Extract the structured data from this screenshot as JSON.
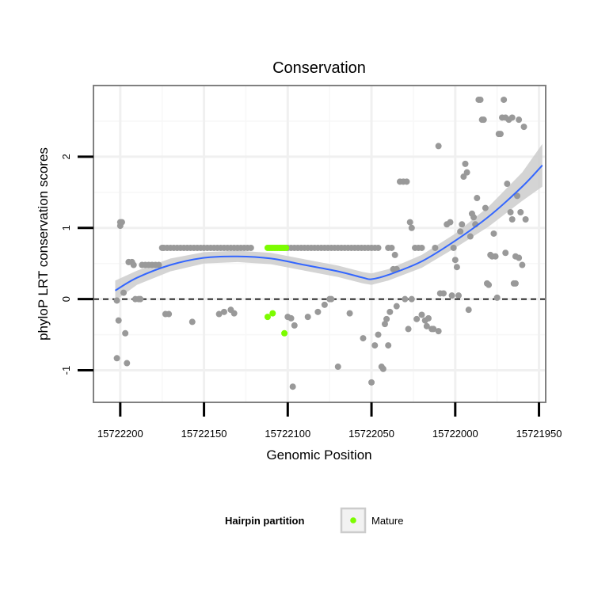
{
  "chart_data": {
    "type": "scatter",
    "title": "Conservation",
    "xlabel": "Genomic Position",
    "ylabel": "phyloP LRT conservation scores",
    "x_reversed": true,
    "xlim": [
      15722216,
      15721946
    ],
    "ylim": [
      -1.45,
      3.0
    ],
    "x_ticks": [
      15722200,
      15722150,
      15722100,
      15722050,
      15722000,
      15721950
    ],
    "x_tick_labels": [
      "15722200",
      "15722150",
      "15722100",
      "15722050",
      "15722000",
      "15721950"
    ],
    "y_ticks": [
      -1,
      0,
      1,
      2
    ],
    "y_tick_labels": [
      "-1",
      "0",
      "1",
      "2"
    ],
    "grid": true,
    "reference_line": {
      "y": 0,
      "style": "dashed",
      "color": "#000000"
    },
    "legend": {
      "title": "Hairpin partition",
      "position": "bottom",
      "entries": [
        {
          "label": "Mature",
          "color": "#7cfc00"
        }
      ]
    },
    "colors": {
      "other_points": "#999999",
      "mature_points": "#7cfc00",
      "smooth_line": "#3366ff",
      "confidence_band": "#cccccc",
      "panel_border": "#808080"
    },
    "series": [
      {
        "group": "other",
        "points": [
          [
            15722202,
            -0.02
          ],
          [
            15722202,
            -0.83
          ],
          [
            15722201,
            -0.3
          ],
          [
            15722200,
            1.08
          ],
          [
            15722200,
            1.03
          ],
          [
            15722199,
            1.08
          ],
          [
            15722198,
            0.09
          ],
          [
            15722197,
            -0.48
          ],
          [
            15722196,
            -0.9
          ],
          [
            15722195,
            0.52
          ],
          [
            15722193,
            0.52
          ],
          [
            15722192,
            0.48
          ],
          [
            15722191,
            0.0
          ],
          [
            15722189,
            0.0
          ],
          [
            15722188,
            0.0
          ],
          [
            15722187,
            0.48
          ],
          [
            15722185,
            0.48
          ],
          [
            15722183,
            0.48
          ],
          [
            15722181,
            0.48
          ],
          [
            15722179,
            0.48
          ],
          [
            15722177,
            0.48
          ],
          [
            15722175,
            0.72
          ],
          [
            15722173,
            -0.21
          ],
          [
            15722171,
            -0.21
          ],
          [
            15722174,
            0.72
          ],
          [
            15722172,
            0.72
          ],
          [
            15722170,
            0.72
          ],
          [
            15722168,
            0.72
          ],
          [
            15722166,
            0.72
          ],
          [
            15722164,
            0.72
          ],
          [
            15722162,
            0.72
          ],
          [
            15722160,
            0.72
          ],
          [
            15722158,
            0.72
          ],
          [
            15722157,
            -0.32
          ],
          [
            15722156,
            0.72
          ],
          [
            15722154,
            0.72
          ],
          [
            15722152,
            0.72
          ],
          [
            15722150,
            0.72
          ],
          [
            15722148,
            0.72
          ],
          [
            15722146,
            0.72
          ],
          [
            15722144,
            0.72
          ],
          [
            15722142,
            0.72
          ],
          [
            15722140,
            0.72
          ],
          [
            15722138,
            0.72
          ],
          [
            15722136,
            0.72
          ],
          [
            15722134,
            0.72
          ],
          [
            15722132,
            0.72
          ],
          [
            15722130,
            0.72
          ],
          [
            15722128,
            0.72
          ],
          [
            15722126,
            0.72
          ],
          [
            15722124,
            0.72
          ],
          [
            15722122,
            0.72
          ],
          [
            15722141,
            -0.21
          ],
          [
            15722138,
            -0.18
          ],
          [
            15722134,
            -0.15
          ],
          [
            15722132,
            -0.2
          ],
          [
            15722104,
            0.72
          ],
          [
            15722102,
            0.72
          ],
          [
            15722100,
            0.72
          ],
          [
            15722098,
            0.72
          ],
          [
            15722096,
            0.72
          ],
          [
            15722094,
            0.72
          ],
          [
            15722092,
            0.72
          ],
          [
            15722090,
            0.72
          ],
          [
            15722088,
            0.72
          ],
          [
            15722086,
            0.72
          ],
          [
            15722084,
            0.72
          ],
          [
            15722082,
            0.72
          ],
          [
            15722080,
            0.72
          ],
          [
            15722078,
            0.72
          ],
          [
            15722076,
            0.72
          ],
          [
            15722074,
            0.72
          ],
          [
            15722072,
            0.72
          ],
          [
            15722070,
            0.72
          ],
          [
            15722068,
            0.72
          ],
          [
            15722066,
            0.72
          ],
          [
            15722064,
            0.72
          ],
          [
            15722062,
            0.72
          ],
          [
            15722060,
            0.72
          ],
          [
            15722058,
            0.72
          ],
          [
            15722056,
            0.72
          ],
          [
            15722054,
            0.72
          ],
          [
            15722052,
            0.72
          ],
          [
            15722050,
            0.72
          ],
          [
            15722048,
            0.72
          ],
          [
            15722046,
            0.72
          ],
          [
            15722040,
            0.72
          ],
          [
            15722038,
            0.72
          ],
          [
            15722036,
            0.62
          ],
          [
            15722100,
            -0.25
          ],
          [
            15722098,
            -0.27
          ],
          [
            15722096,
            -0.37
          ],
          [
            15722097,
            -1.23
          ],
          [
            15722088,
            -0.25
          ],
          [
            15722082,
            -0.18
          ],
          [
            15722078,
            -0.08
          ],
          [
            15722075,
            0.0
          ],
          [
            15722074,
            0.0
          ],
          [
            15722070,
            -0.95
          ],
          [
            15722063,
            -0.2
          ],
          [
            15722055,
            -0.55
          ],
          [
            15722050,
            -1.17
          ],
          [
            15722048,
            -0.65
          ],
          [
            15722046,
            -0.5
          ],
          [
            15722044,
            -0.95
          ],
          [
            15722043,
            -0.98
          ],
          [
            15722042,
            -0.35
          ],
          [
            15722041,
            -0.28
          ],
          [
            15722040,
            -0.65
          ],
          [
            15722039,
            -0.18
          ],
          [
            15722037,
            0.42
          ],
          [
            15722035,
            0.42
          ],
          [
            15722033,
            1.65
          ],
          [
            15722031,
            1.65
          ],
          [
            15722029,
            1.65
          ],
          [
            15722035,
            -0.1
          ],
          [
            15722030,
            0.0
          ],
          [
            15722028,
            -0.42
          ],
          [
            15722027,
            1.08
          ],
          [
            15722026,
            1.0
          ],
          [
            15722024,
            0.72
          ],
          [
            15722022,
            0.72
          ],
          [
            15722020,
            0.72
          ],
          [
            15722026,
            0.0
          ],
          [
            15722023,
            -0.28
          ],
          [
            15722020,
            -0.22
          ],
          [
            15722018,
            -0.3
          ],
          [
            15722017,
            -0.38
          ],
          [
            15722016,
            -0.27
          ],
          [
            15722014,
            -0.42
          ],
          [
            15722013,
            -0.42
          ],
          [
            15722010,
            -0.45
          ],
          [
            15722012,
            0.72
          ],
          [
            15722010,
            2.15
          ],
          [
            15722009,
            0.08
          ],
          [
            15722007,
            0.08
          ],
          [
            15722005,
            1.05
          ],
          [
            15722003,
            1.08
          ],
          [
            15722002,
            0.05
          ],
          [
            15722001,
            0.72
          ],
          [
            15722000,
            0.55
          ],
          [
            15721999,
            0.45
          ],
          [
            15721998,
            0.05
          ],
          [
            15721997,
            0.95
          ],
          [
            15721996,
            1.05
          ],
          [
            15721995,
            1.72
          ],
          [
            15721994,
            1.9
          ],
          [
            15721993,
            1.78
          ],
          [
            15721992,
            -0.15
          ],
          [
            15721991,
            0.88
          ],
          [
            15721990,
            1.2
          ],
          [
            15721989,
            1.15
          ],
          [
            15721988,
            1.05
          ],
          [
            15721987,
            1.42
          ],
          [
            15721986,
            2.8
          ],
          [
            15721985,
            2.8
          ],
          [
            15721984,
            2.52
          ],
          [
            15721983,
            2.52
          ],
          [
            15721982,
            1.28
          ],
          [
            15721981,
            0.22
          ],
          [
            15721980,
            0.2
          ],
          [
            15721979,
            0.62
          ],
          [
            15721978,
            0.6
          ],
          [
            15721977,
            0.92
          ],
          [
            15721976,
            0.6
          ],
          [
            15721975,
            0.02
          ],
          [
            15721974,
            2.32
          ],
          [
            15721973,
            2.32
          ],
          [
            15721972,
            2.55
          ],
          [
            15721971,
            2.8
          ],
          [
            15721970,
            0.65
          ],
          [
            15721969,
            1.62
          ],
          [
            15721967,
            1.22
          ],
          [
            15721966,
            1.12
          ],
          [
            15721965,
            0.22
          ],
          [
            15721964,
            0.22
          ],
          [
            15721963,
            1.45
          ],
          [
            15721962,
            2.52
          ],
          [
            15721961,
            1.22
          ],
          [
            15721960,
            0.48
          ],
          [
            15721959,
            2.42
          ],
          [
            15721958,
            1.12
          ],
          [
            15721970,
            2.55
          ],
          [
            15721968,
            2.52
          ],
          [
            15721966,
            2.55
          ],
          [
            15721964,
            0.6
          ],
          [
            15721962,
            0.58
          ]
        ]
      },
      {
        "group": "Mature",
        "points": [
          [
            15722112,
            0.72
          ],
          [
            15722111,
            0.72
          ],
          [
            15722110,
            0.72
          ],
          [
            15722109,
            0.72
          ],
          [
            15722108,
            0.72
          ],
          [
            15722107,
            0.72
          ],
          [
            15722106,
            0.72
          ],
          [
            15722105,
            0.72
          ],
          [
            15722104,
            0.72
          ],
          [
            15722103,
            0.72
          ],
          [
            15722102,
            0.72
          ],
          [
            15722101,
            0.72
          ],
          [
            15722112,
            -0.25
          ],
          [
            15722109,
            -0.2
          ],
          [
            15722102,
            -0.48
          ]
        ]
      }
    ],
    "smooth": {
      "x": [
        15722203,
        15722190,
        15722170,
        15722150,
        15722130,
        15722110,
        15722090,
        15722070,
        15722055,
        15722050,
        15722040,
        15722020,
        15722000,
        15721980,
        15721960,
        15721948
      ],
      "y": [
        0.12,
        0.3,
        0.48,
        0.58,
        0.6,
        0.57,
        0.48,
        0.39,
        0.3,
        0.28,
        0.34,
        0.53,
        0.82,
        1.16,
        1.58,
        1.88
      ],
      "band_half_width": [
        0.14,
        0.1,
        0.09,
        0.08,
        0.08,
        0.08,
        0.08,
        0.08,
        0.08,
        0.08,
        0.08,
        0.09,
        0.1,
        0.14,
        0.2,
        0.3
      ]
    }
  }
}
